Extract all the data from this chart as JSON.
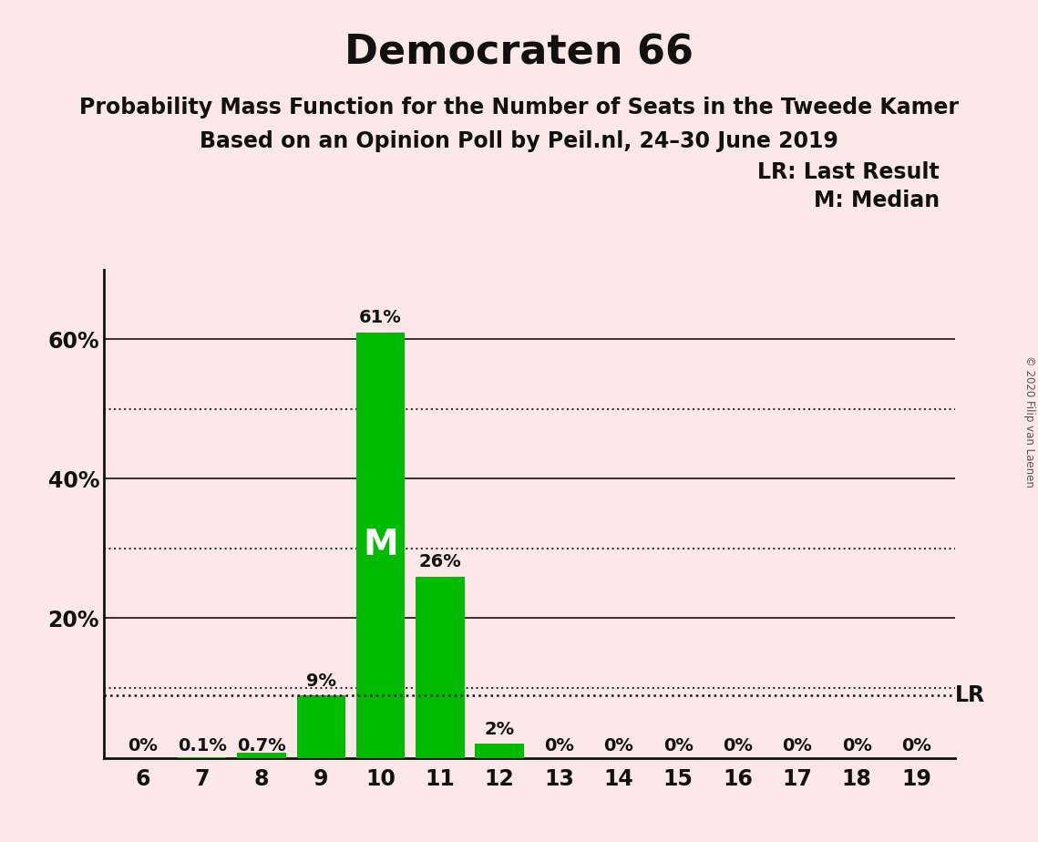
{
  "title": "Democraten 66",
  "subtitle1": "Probability Mass Function for the Number of Seats in the Tweede Kamer",
  "subtitle2": "Based on an Opinion Poll by Peil.nl, 24–30 June 2019",
  "copyright": "© 2020 Filip van Laenen",
  "seats": [
    6,
    7,
    8,
    9,
    10,
    11,
    12,
    13,
    14,
    15,
    16,
    17,
    18,
    19
  ],
  "probabilities": [
    0.0,
    0.1,
    0.7,
    9.0,
    61.0,
    26.0,
    2.0,
    0.0,
    0.0,
    0.0,
    0.0,
    0.0,
    0.0,
    0.0
  ],
  "labels": [
    "0%",
    "0.1%",
    "0.7%",
    "9%",
    "61%",
    "26%",
    "2%",
    "0%",
    "0%",
    "0%",
    "0%",
    "0%",
    "0%",
    "0%"
  ],
  "bar_color": "#00bb00",
  "background_color": "#fce8e8",
  "median_seat": 10,
  "median_label": "M",
  "lr_value": 9.0,
  "lr_label": "LR",
  "legend_lr": "LR: Last Result",
  "legend_m": "M: Median",
  "ylim": [
    0,
    70
  ],
  "solid_gridlines": [
    20,
    40,
    60
  ],
  "dotted_gridlines": [
    10,
    30,
    50
  ],
  "ytick_positions": [
    20,
    40,
    60
  ],
  "ytick_labels": [
    "20%",
    "40%",
    "60%"
  ],
  "title_fontsize": 32,
  "subtitle_fontsize": 17,
  "label_fontsize": 14,
  "tick_fontsize": 17,
  "legend_fontsize": 17,
  "median_fontsize": 28
}
